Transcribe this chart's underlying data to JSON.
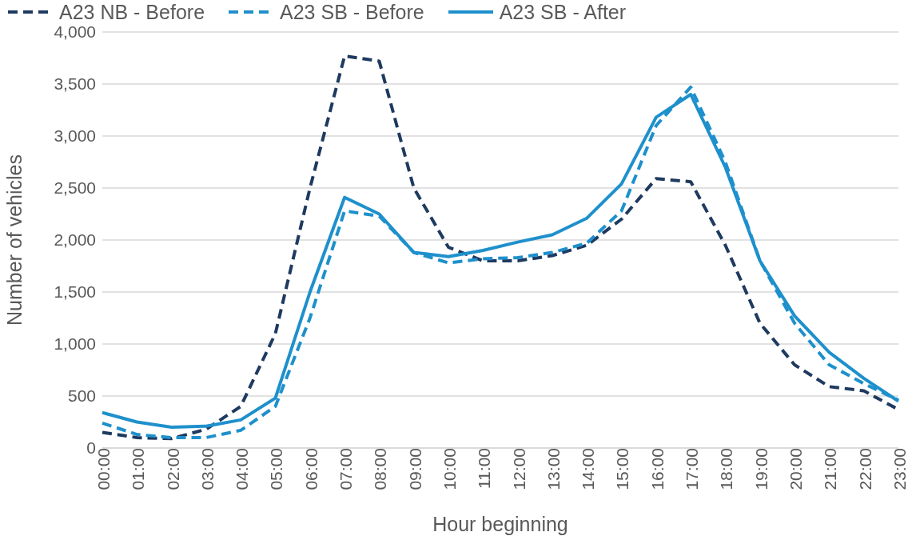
{
  "chart_data": {
    "type": "line",
    "xlabel": "Hour beginning",
    "ylabel": "Number of vehicles",
    "categories": [
      "00:00",
      "01:00",
      "02:00",
      "03:00",
      "04:00",
      "05:00",
      "06:00",
      "07:00",
      "08:00",
      "09:00",
      "10:00",
      "11:00",
      "12:00",
      "13:00",
      "14:00",
      "15:00",
      "16:00",
      "17:00",
      "18:00",
      "19:00",
      "20:00",
      "21:00",
      "22:00",
      "23:00"
    ],
    "series": [
      {
        "name": "A23 NB - Before",
        "color": "#1f3a60",
        "line_style": "dashed",
        "values": [
          150,
          100,
          90,
          180,
          400,
          1100,
          2500,
          3770,
          3720,
          2500,
          1930,
          1800,
          1800,
          1850,
          1950,
          2200,
          2590,
          2560,
          1950,
          1200,
          800,
          590,
          550,
          370
        ]
      },
      {
        "name": "A23 SB - Before",
        "color": "#1e90cc",
        "line_style": "dashed",
        "values": [
          240,
          130,
          100,
          100,
          170,
          400,
          1250,
          2280,
          2230,
          1880,
          1780,
          1820,
          1830,
          1880,
          1970,
          2280,
          3100,
          3470,
          2750,
          1800,
          1200,
          800,
          620,
          460
        ]
      },
      {
        "name": "A23 SB - After",
        "color": "#1e90cc",
        "line_style": "solid",
        "values": [
          340,
          250,
          200,
          210,
          270,
          480,
          1500,
          2410,
          2250,
          1880,
          1840,
          1900,
          1980,
          2050,
          2210,
          2540,
          3180,
          3400,
          2700,
          1800,
          1270,
          920,
          670,
          450
        ]
      }
    ],
    "ylim": [
      0,
      4000
    ],
    "yticks": [
      0,
      {
        "value": 500,
        "label": "500"
      },
      {
        "value": 1000,
        "label": "1,000"
      },
      {
        "value": 1500,
        "label": "1,500"
      },
      {
        "value": 2000,
        "label": "2,000"
      },
      {
        "value": 2500,
        "label": "2,500"
      },
      {
        "value": 3000,
        "label": "3,000"
      },
      {
        "value": 3500,
        "label": "3,500"
      },
      {
        "value": 4000,
        "label": "4,000"
      }
    ],
    "grid": "y",
    "legend": "top left",
    "marker": "none"
  }
}
